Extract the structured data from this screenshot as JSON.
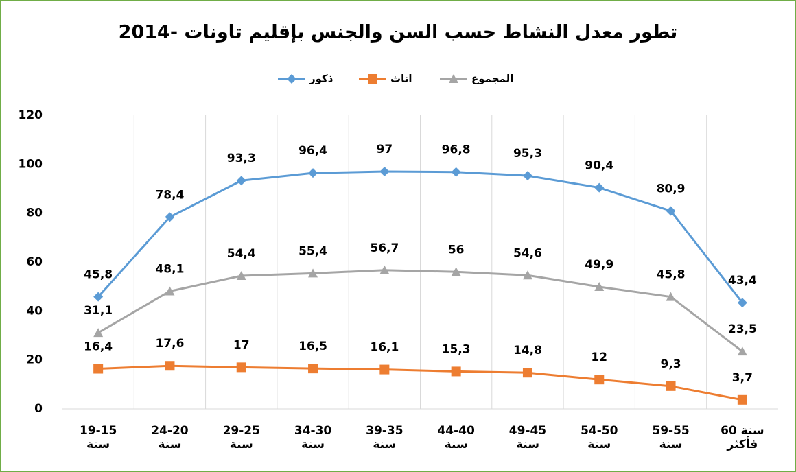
{
  "chart_data": {
    "type": "line",
    "title": "تطور معدل النشاط حسب السن والجنس بإقليم تاونات -2014",
    "categories": [
      "19-15 سنة",
      "24-20 سنة",
      "29-25 سنة",
      "34-30 سنة",
      "39-35 سنة",
      "44-40 سنة",
      "49-45 سنة",
      "54-50 سنة",
      "59-55 سنة",
      "60 سنة فأكثر"
    ],
    "series": [
      {
        "name": "ذكور",
        "color": "#5b9bd5",
        "marker": "diamond",
        "values": [
          45.8,
          78.4,
          93.3,
          96.4,
          97,
          96.8,
          95.3,
          90.4,
          80.9,
          43.4
        ],
        "value_labels": [
          "45,8",
          "78,4",
          "93,3",
          "96,4",
          "97",
          "96,8",
          "95,3",
          "90,4",
          "80,9",
          "43,4"
        ]
      },
      {
        "name": "اناث",
        "color": "#ed7d31",
        "marker": "square",
        "values": [
          16.4,
          17.6,
          17,
          16.5,
          16.1,
          15.3,
          14.8,
          12,
          9.3,
          3.7
        ],
        "value_labels": [
          "16,4",
          "17,6",
          "17",
          "16,5",
          "16,1",
          "15,3",
          "14,8",
          "12",
          "9,3",
          "3,7"
        ]
      },
      {
        "name": "المجموع",
        "color": "#a5a5a5",
        "marker": "triangle",
        "values": [
          31.1,
          48.1,
          54.4,
          55.4,
          56.7,
          56,
          54.6,
          49.9,
          45.8,
          23.5
        ],
        "value_labels": [
          "31,1",
          "48,1",
          "54,4",
          "55,4",
          "56,7",
          "56",
          "54,6",
          "49,9",
          "45,8",
          "23,5"
        ]
      }
    ],
    "ylim": [
      0,
      120
    ],
    "yticks": [
      0,
      20,
      40,
      60,
      80,
      100,
      120
    ],
    "grid": "vertical"
  }
}
